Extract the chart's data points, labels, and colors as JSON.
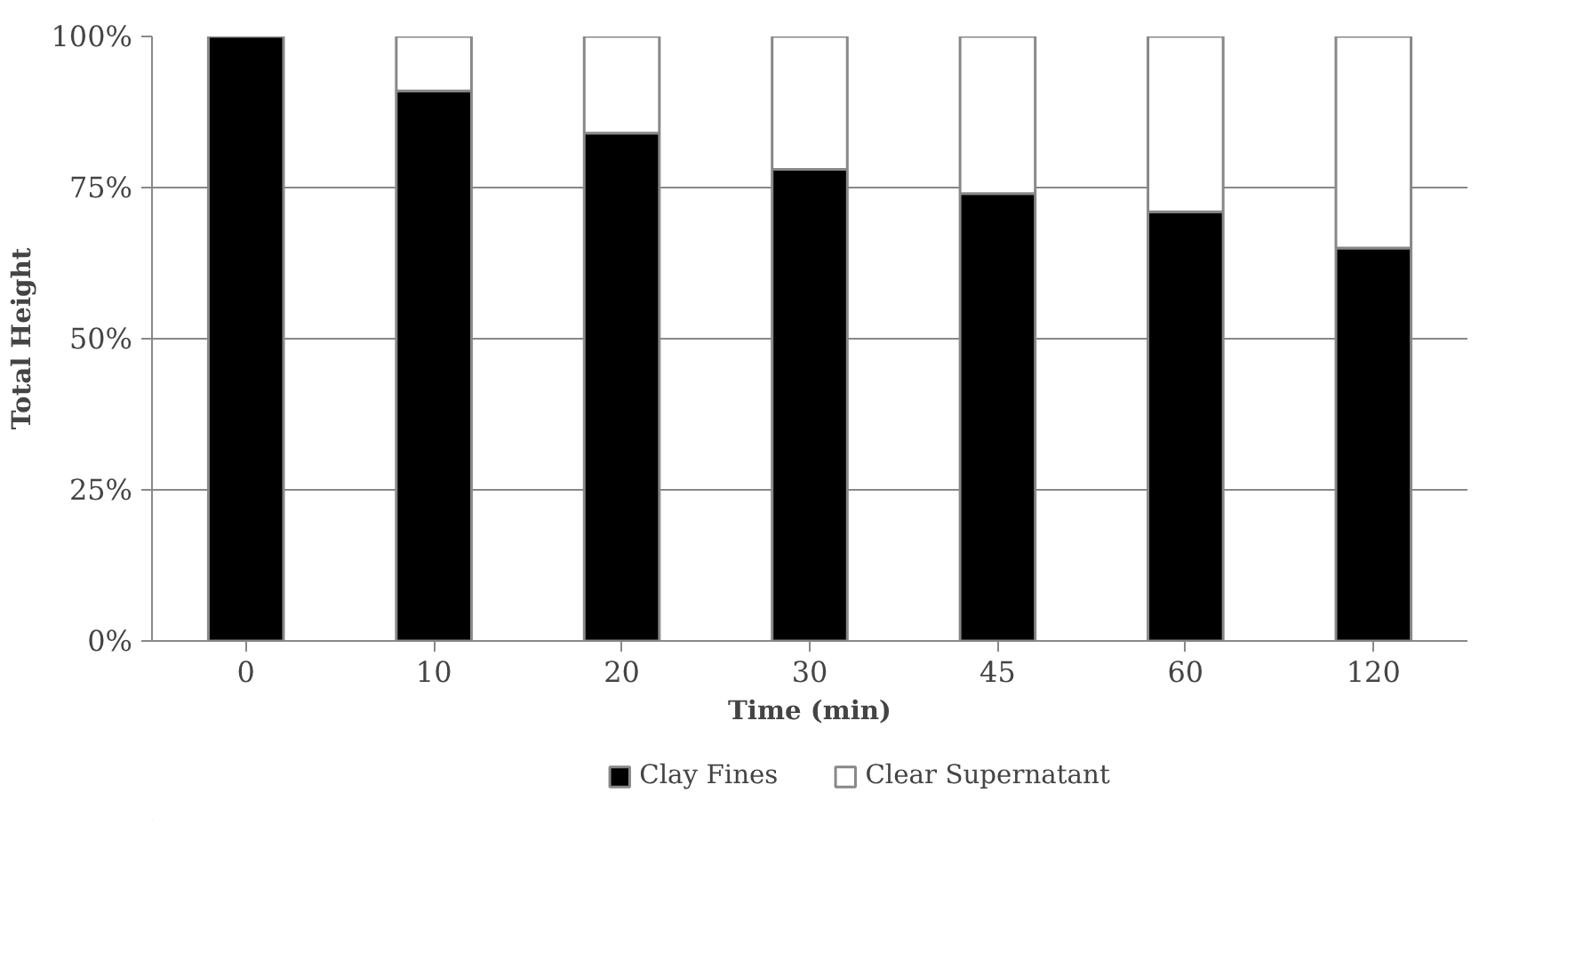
{
  "chart_data": {
    "type": "bar",
    "stacked": true,
    "xlabel": "Time (min)",
    "ylabel": "Total Height",
    "categories": [
      "0",
      "10",
      "20",
      "30",
      "45",
      "60",
      "120"
    ],
    "series": [
      {
        "name": "Clay Fines",
        "color": "#000000",
        "values": [
          100,
          91,
          84,
          78,
          74,
          71,
          65
        ]
      },
      {
        "name": "Clear Supernatant",
        "color": "#ffffff",
        "values": [
          0,
          9,
          16,
          22,
          26,
          29,
          35
        ]
      }
    ],
    "ylim": [
      0,
      100
    ],
    "yticks": [
      {
        "value": 0,
        "label": "0%"
      },
      {
        "value": 25,
        "label": "25%"
      },
      {
        "value": 50,
        "label": "50%"
      },
      {
        "value": 75,
        "label": "75%"
      },
      {
        "value": 100,
        "label": "100%"
      }
    ],
    "grid": "y",
    "legend": "bottom"
  }
}
